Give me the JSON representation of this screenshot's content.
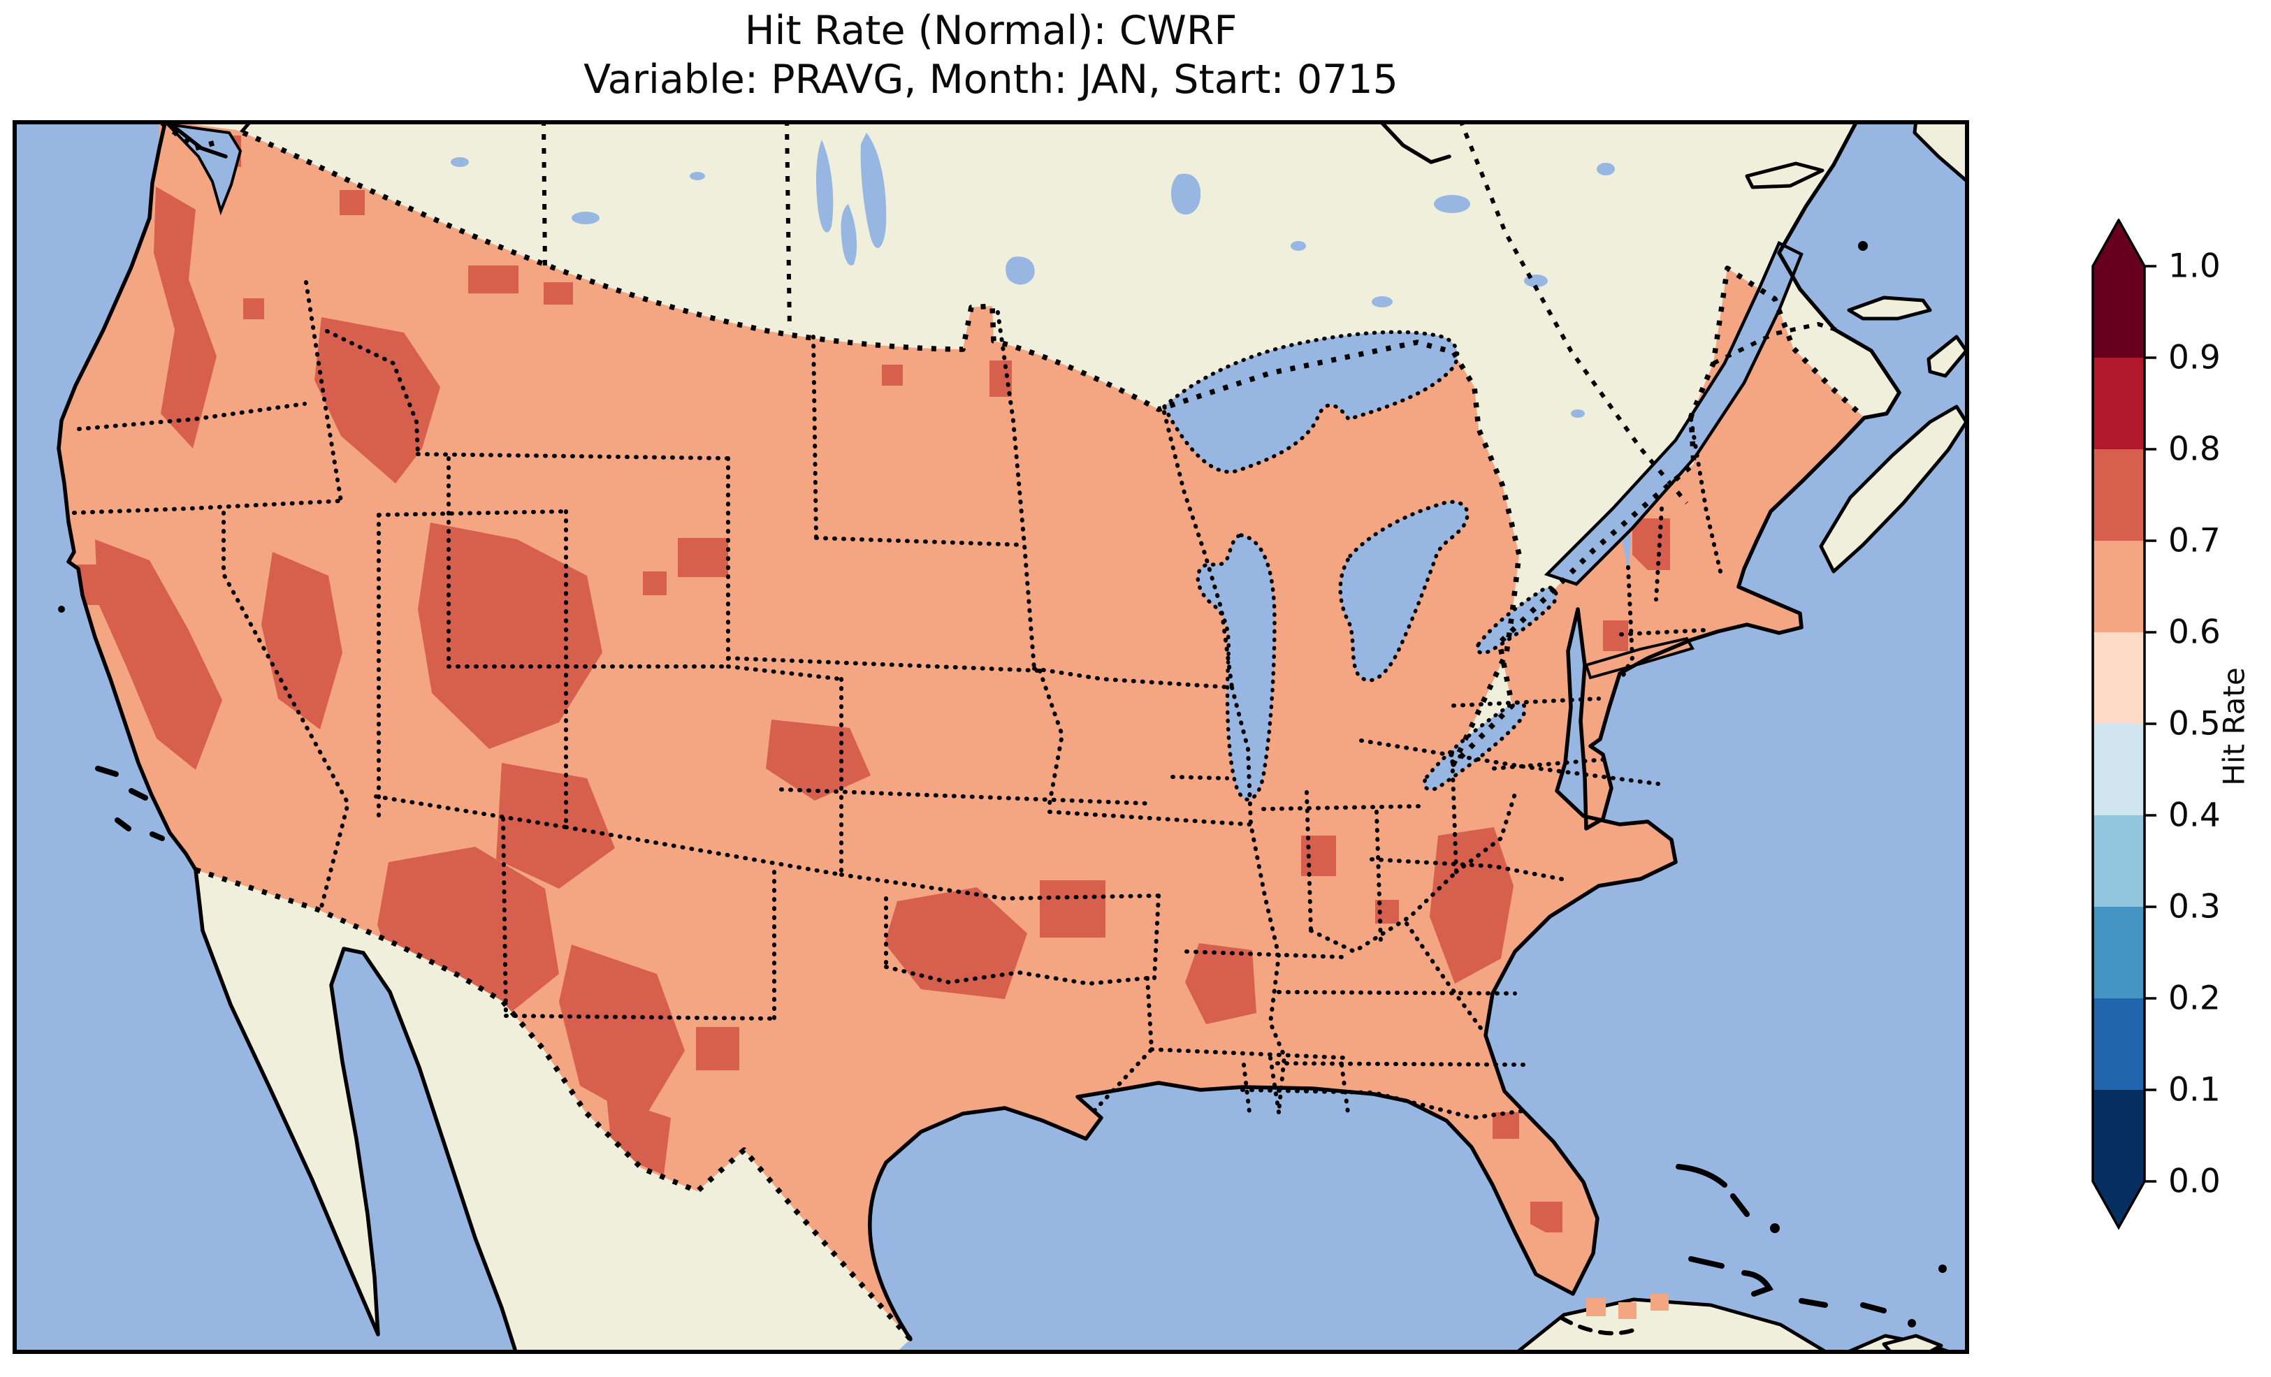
{
  "figure": {
    "title_line1": "Hit Rate (Normal): CWRF",
    "title_line2": "Variable: PRAVG, Month: JAN, Start: 0715"
  },
  "chart_data": {
    "type": "heatmap",
    "title": "Hit Rate (Normal): CWRF",
    "subtitle": "Variable: PRAVG, Month: JAN, Start: 0715",
    "metric": "Hit Rate (Normal)",
    "model": "CWRF",
    "variable": "PRAVG",
    "month": "JAN",
    "start": "0715",
    "region": "Contiguous United States (pixelated forecast-grid map view with Canada, Mexico, Great Lakes, Atlantic islands)",
    "colorbar": {
      "label": "Hit Rate",
      "orientation": "vertical",
      "extend": "both",
      "colormap": "RdBu_r, 10 discrete levels",
      "ticks": [
        "0.0",
        "0.1",
        "0.2",
        "0.3",
        "0.4",
        "0.5",
        "0.6",
        "0.7",
        "0.8",
        "0.9",
        "1.0"
      ],
      "tick_values": [
        0.0,
        0.1,
        0.2,
        0.3,
        0.4,
        0.5,
        0.6,
        0.7,
        0.8,
        0.9,
        1.0
      ],
      "levels": [
        {
          "range": [
            0.0,
            0.1
          ],
          "color": "#053061"
        },
        {
          "range": [
            0.1,
            0.2
          ],
          "color": "#2166ac"
        },
        {
          "range": [
            0.2,
            0.3
          ],
          "color": "#4393c3"
        },
        {
          "range": [
            0.3,
            0.4
          ],
          "color": "#92c5de"
        },
        {
          "range": [
            0.4,
            0.5
          ],
          "color": "#d1e5f0"
        },
        {
          "range": [
            0.5,
            0.6
          ],
          "color": "#fddbc7"
        },
        {
          "range": [
            0.6,
            0.7
          ],
          "color": "#f4a582"
        },
        {
          "range": [
            0.7,
            0.8
          ],
          "color": "#d6604d"
        },
        {
          "range": [
            0.8,
            0.9
          ],
          "color": "#b2182b"
        },
        {
          "range": [
            0.9,
            1.0
          ],
          "color": "#67001f"
        }
      ],
      "over_color": "#67001f",
      "under_color": "#053061"
    },
    "map_summary": {
      "dominant_hit_rate_range": [
        0.6,
        0.7
      ],
      "dominant_color": "#f4a582",
      "secondary_hit_rate_range": [
        0.7,
        0.8
      ],
      "secondary_color": "#d6604d",
      "higher_hit_rate_regions": [
        "Cascades (Washington/Oregon)",
        "Sierra Nevada and northern California",
        "Central Idaho / western Montana Rockies",
        "Central Nevada ranges",
        "Wasatch and Colorado Rockies",
        "Arizona–New Mexico highlands",
        "Southern New Mexico / Trans-Pecos and west Texas",
        "Texas Panhandle – western Oklahoma",
        "Central Kansas (small patch)",
        "Black Hills, South Dakota (small patch)",
        "South Carolina / eastern Georgia",
        "Central Alabama",
        "Northern Vermont (single cell)",
        "Chesapeake Bay area (single cell)",
        "Central Florida (isolated cells)"
      ],
      "ocean_color": "#97b6e1",
      "land_color": "#efefdb",
      "line_work": "solid black coastlines; dotted black state, provincial and international borders"
    }
  }
}
